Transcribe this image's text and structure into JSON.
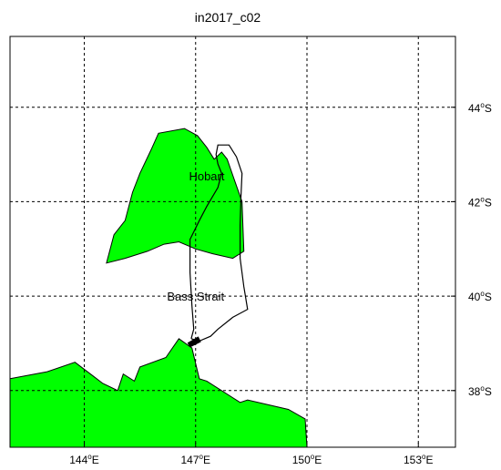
{
  "title": "in2017_c02",
  "colors": {
    "land": "#00ff00",
    "coast": "#000000",
    "track": "#000000",
    "grid": "#000000",
    "background": "#ffffff"
  },
  "map": {
    "projection": "mercator-like",
    "lon_range": [
      142.0,
      154.0
    ],
    "lat_range": [
      -45.5,
      -36.8
    ],
    "grid": true,
    "grid_style": "dashed"
  },
  "x_ticks": [
    {
      "lon": 144,
      "num": "144",
      "hemi": "E"
    },
    {
      "lon": 147,
      "num": "147",
      "hemi": "E"
    },
    {
      "lon": 150,
      "num": "150",
      "hemi": "E"
    },
    {
      "lon": 153,
      "num": "153",
      "hemi": "E"
    }
  ],
  "y_ticks": [
    {
      "lat": -38,
      "num": "38",
      "hemi": "S"
    },
    {
      "lat": -40,
      "num": "40",
      "hemi": "S"
    },
    {
      "lat": -42,
      "num": "42",
      "hemi": "S"
    },
    {
      "lat": -44,
      "num": "44",
      "hemi": "S"
    }
  ],
  "degree_symbol": "o",
  "place_labels": [
    {
      "name": "bass-strait-label",
      "text": "Bass Strait",
      "lon": 147.0,
      "lat": -40.0
    },
    {
      "name": "hobart-label",
      "text": "Hobart",
      "lon": 147.3,
      "lat": -42.55
    }
  ],
  "land_polygons": [
    {
      "name": "mainland-australia",
      "points": [
        [
          142.0,
          -36.8
        ],
        [
          150.0,
          -36.8
        ],
        [
          149.95,
          -37.4
        ],
        [
          149.5,
          -37.6
        ],
        [
          148.4,
          -37.8
        ],
        [
          148.2,
          -37.75
        ],
        [
          147.3,
          -38.2
        ],
        [
          147.1,
          -38.25
        ],
        [
          146.9,
          -38.9
        ],
        [
          146.55,
          -39.1
        ],
        [
          146.2,
          -38.7
        ],
        [
          145.5,
          -38.5
        ],
        [
          145.35,
          -38.2
        ],
        [
          145.05,
          -38.35
        ],
        [
          144.9,
          -38.0
        ],
        [
          144.5,
          -38.15
        ],
        [
          144.25,
          -38.3
        ],
        [
          143.75,
          -38.6
        ],
        [
          143.0,
          -38.4
        ],
        [
          142.0,
          -38.25
        ]
      ]
    },
    {
      "name": "tasmania",
      "points": [
        [
          144.6,
          -40.7
        ],
        [
          145.1,
          -40.8
        ],
        [
          145.7,
          -40.95
        ],
        [
          146.15,
          -41.1
        ],
        [
          146.55,
          -41.15
        ],
        [
          147.0,
          -41.0
        ],
        [
          147.45,
          -40.9
        ],
        [
          148.0,
          -40.8
        ],
        [
          148.3,
          -40.95
        ],
        [
          148.25,
          -42.0
        ],
        [
          148.05,
          -42.45
        ],
        [
          147.85,
          -42.9
        ],
        [
          147.7,
          -43.05
        ],
        [
          147.5,
          -42.9
        ],
        [
          147.3,
          -43.15
        ],
        [
          147.05,
          -43.4
        ],
        [
          146.7,
          -43.55
        ],
        [
          146.0,
          -43.45
        ],
        [
          145.8,
          -43.1
        ],
        [
          145.5,
          -42.6
        ],
        [
          145.3,
          -42.2
        ],
        [
          145.1,
          -41.6
        ],
        [
          144.8,
          -41.3
        ]
      ]
    }
  ],
  "ship_track": [
    [
      146.88,
      -39.1
    ],
    [
      147.1,
      -39.05
    ],
    [
      147.4,
      -39.15
    ],
    [
      147.6,
      -39.3
    ],
    [
      148.0,
      -39.55
    ],
    [
      148.4,
      -39.72
    ],
    [
      148.3,
      -40.2
    ],
    [
      148.2,
      -40.8
    ],
    [
      148.2,
      -41.5
    ],
    [
      148.22,
      -42.1
    ],
    [
      148.25,
      -42.6
    ],
    [
      148.1,
      -42.95
    ],
    [
      147.9,
      -43.2
    ],
    [
      147.6,
      -43.2
    ],
    [
      147.55,
      -43.0
    ],
    [
      147.6,
      -42.8
    ],
    [
      147.7,
      -42.6
    ],
    [
      147.6,
      -42.3
    ],
    [
      147.3,
      -41.9
    ],
    [
      147.1,
      -41.6
    ],
    [
      146.85,
      -41.2
    ],
    [
      146.85,
      -40.5
    ],
    [
      146.9,
      -39.8
    ],
    [
      146.95,
      -39.3
    ],
    [
      146.88,
      -39.1
    ]
  ],
  "track_start_marker": {
    "lon": 146.95,
    "lat": -39.05
  }
}
